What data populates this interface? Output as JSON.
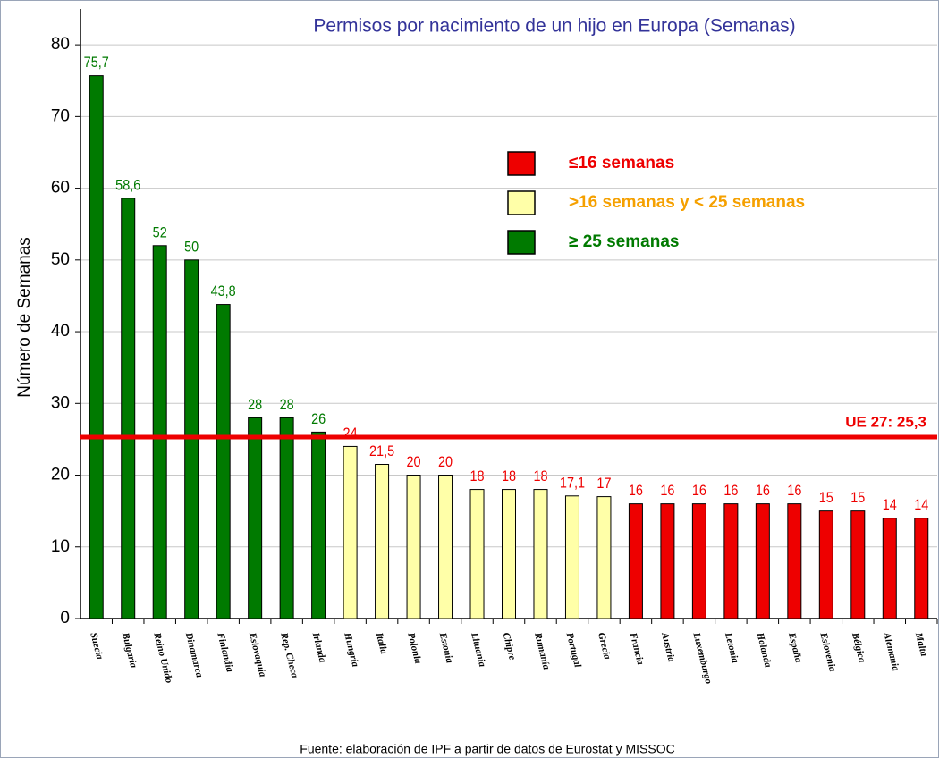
{
  "chart_data": {
    "type": "bar",
    "title": "Permisos por nacimiento de un hijo en Europa (Semanas)",
    "y_label": "Número de Semanas",
    "source": "Fuente: elaboración de IPF a partir de datos de Eurostat y MISSOC",
    "categories": [
      "Suecia",
      "Bulgaria",
      "Reino Unido",
      "Dinamarca",
      "Finlandia",
      "Eslovaquia",
      "Rep. Checa",
      "Irlanda",
      "Hungría",
      "Italia",
      "Polonia",
      "Estonia",
      "Lituania",
      "Chipre",
      "Rumanía",
      "Portugal",
      "Grecia",
      "Francia",
      "Austria",
      "Luxemburgo",
      "Letonia",
      "Holanda",
      "España",
      "Eslovenia",
      "Bélgica",
      "Alemania",
      "Malta"
    ],
    "values": [
      75.7,
      58.6,
      52,
      50,
      43.8,
      28,
      28,
      26,
      24,
      21.5,
      20,
      20,
      18,
      18,
      18,
      17.1,
      17,
      16,
      16,
      16,
      16,
      16,
      16,
      15,
      15,
      14,
      14
    ],
    "value_labels": [
      "75,7",
      "58,6",
      "52",
      "50",
      "43,8",
      "28",
      "28",
      "26",
      "24",
      "21,5",
      "20",
      "20",
      "18",
      "18",
      "18",
      "17,1",
      "17",
      "16",
      "16",
      "16",
      "16",
      "16",
      "16",
      "15",
      "15",
      "14",
      "14"
    ],
    "colors": [
      "#007a00",
      "#007a00",
      "#007a00",
      "#007a00",
      "#007a00",
      "#007a00",
      "#007a00",
      "#007a00",
      "#ffffa8",
      "#ffffa8",
      "#ffffa8",
      "#ffffa8",
      "#ffffa8",
      "#ffffa8",
      "#ffffa8",
      "#ffffa8",
      "#ffffa8",
      "#ee0000",
      "#ee0000",
      "#ee0000",
      "#ee0000",
      "#ee0000",
      "#ee0000",
      "#ee0000",
      "#ee0000",
      "#ee0000",
      "#ee0000"
    ],
    "label_colors": [
      "#007a00",
      "#007a00",
      "#007a00",
      "#007a00",
      "#007a00",
      "#007a00",
      "#007a00",
      "#007a00",
      "#ee0000",
      "#ee0000",
      "#ee0000",
      "#ee0000",
      "#ee0000",
      "#ee0000",
      "#ee0000",
      "#ee0000",
      "#ee0000",
      "#ee0000",
      "#ee0000",
      "#ee0000",
      "#ee0000",
      "#ee0000",
      "#ee0000",
      "#ee0000",
      "#ee0000",
      "#ee0000",
      "#ee0000"
    ],
    "ylim": [
      0,
      85
    ],
    "yticks": [
      0,
      10,
      20,
      30,
      40,
      50,
      60,
      70,
      80
    ],
    "grid": true,
    "reference_line": {
      "value": 25.3,
      "label": "UE 27: 25,3",
      "color": "#ee0000"
    },
    "legend": [
      {
        "label": "≤16 semanas",
        "color": "#ee0000",
        "text_color": "#ee0000"
      },
      {
        "label": ">16 semanas y < 25 semanas",
        "color": "#ffffa8",
        "text_color": "#f5a000"
      },
      {
        "label": "≥ 25 semanas",
        "color": "#007a00",
        "text_color": "#007a00"
      }
    ]
  }
}
